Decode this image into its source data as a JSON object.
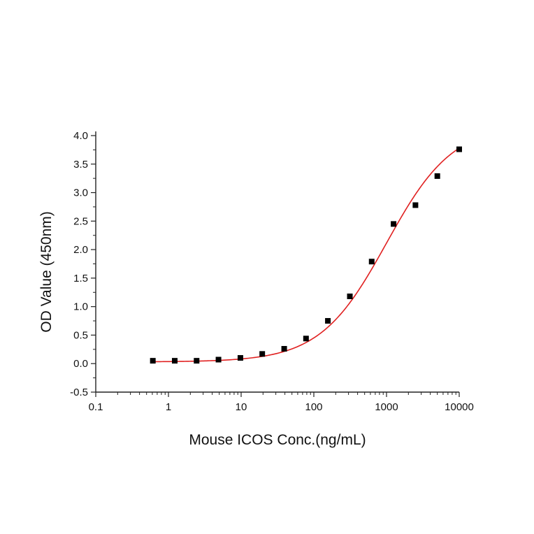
{
  "chart_data": {
    "type": "scatter",
    "xlabel": "Mouse ICOS Conc.(ng/mL)",
    "ylabel": "OD Value (450nm)",
    "x_scale": "log",
    "xlim": [
      0.1,
      10000
    ],
    "ylim": [
      -0.5,
      4.0
    ],
    "x_ticks": [
      {
        "value": 0.1,
        "label": "0.1"
      },
      {
        "value": 1,
        "label": "1"
      },
      {
        "value": 10,
        "label": "10"
      },
      {
        "value": 100,
        "label": "100"
      },
      {
        "value": 1000,
        "label": "1000"
      },
      {
        "value": 10000,
        "label": "10000"
      }
    ],
    "y_ticks": [
      {
        "value": -0.5,
        "label": "-0.5"
      },
      {
        "value": 0.0,
        "label": "0.0"
      },
      {
        "value": 0.5,
        "label": "0.5"
      },
      {
        "value": 1.0,
        "label": "1.0"
      },
      {
        "value": 1.5,
        "label": "1.5"
      },
      {
        "value": 2.0,
        "label": "2.0"
      },
      {
        "value": 2.5,
        "label": "2.5"
      },
      {
        "value": 3.0,
        "label": "3.0"
      },
      {
        "value": 3.5,
        "label": "3.5"
      },
      {
        "value": 4.0,
        "label": "4.0"
      }
    ],
    "grid": false,
    "series": [
      {
        "marker": "square",
        "color": "#000000",
        "points": [
          {
            "x": 0.61,
            "y": 0.05
          },
          {
            "x": 1.22,
            "y": 0.05
          },
          {
            "x": 2.44,
            "y": 0.05
          },
          {
            "x": 4.88,
            "y": 0.07
          },
          {
            "x": 9.77,
            "y": 0.1
          },
          {
            "x": 19.5,
            "y": 0.17
          },
          {
            "x": 39.1,
            "y": 0.26
          },
          {
            "x": 78.1,
            "y": 0.44
          },
          {
            "x": 156,
            "y": 0.75
          },
          {
            "x": 313,
            "y": 1.18
          },
          {
            "x": 625,
            "y": 1.79
          },
          {
            "x": 1250,
            "y": 2.45
          },
          {
            "x": 2500,
            "y": 2.78
          },
          {
            "x": 5000,
            "y": 3.29
          },
          {
            "x": 10000,
            "y": 3.76
          }
        ]
      }
    ],
    "fit_curve": {
      "color": "#e02020",
      "model": "4PL",
      "bottom": 0.03,
      "top": 4.2,
      "ec50": 1000,
      "hill": 0.95,
      "x_range": [
        0.61,
        10000
      ]
    }
  }
}
